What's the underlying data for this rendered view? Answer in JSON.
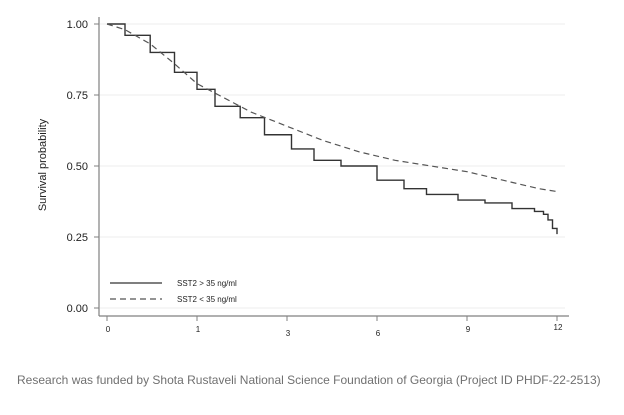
{
  "chart_data": {
    "type": "line",
    "title": "",
    "xlabel": "",
    "ylabel": "Survival probability",
    "x_tick_labels": [
      "0",
      "1",
      "3",
      "6",
      "9",
      "12"
    ],
    "y_ticks": [
      0.0,
      0.25,
      0.5,
      0.75,
      1.0
    ],
    "y_tick_labels": [
      "0.00",
      "0.25",
      "0.50",
      "0.75",
      "1.00"
    ],
    "ylim": [
      0,
      1
    ],
    "x_scale_note": "tick labels are evenly spaced; x values below are in tick-index units (0..5)",
    "xlim": [
      0,
      5
    ],
    "grid": true,
    "legend_position": "bottom-left",
    "series": [
      {
        "name": "SST2 > 35 ng/ml",
        "style": "solid",
        "color": "#333333",
        "x": [
          0,
          0.2,
          0.48,
          0.75,
          1.0,
          1.2,
          1.48,
          1.75,
          2.05,
          2.3,
          2.6,
          3.0,
          3.3,
          3.55,
          3.9,
          4.2,
          4.5,
          4.75,
          4.85,
          4.9,
          4.95,
          5.0
        ],
        "y": [
          1.0,
          0.96,
          0.9,
          0.83,
          0.77,
          0.71,
          0.67,
          0.61,
          0.56,
          0.52,
          0.5,
          0.45,
          0.42,
          0.4,
          0.38,
          0.37,
          0.35,
          0.34,
          0.33,
          0.31,
          0.28,
          0.26
        ]
      },
      {
        "name": "SST2 < 35 ng/ml",
        "style": "dashed",
        "color": "#555555",
        "x": [
          0,
          0.2,
          0.48,
          0.75,
          1.0,
          1.3,
          1.6,
          2.0,
          2.4,
          2.8,
          3.2,
          3.6,
          4.0,
          4.4,
          4.8,
          5.0
        ],
        "y": [
          1.0,
          0.98,
          0.93,
          0.86,
          0.79,
          0.74,
          0.69,
          0.64,
          0.59,
          0.55,
          0.52,
          0.5,
          0.48,
          0.45,
          0.42,
          0.41
        ]
      }
    ]
  },
  "caption": "Research was funded by Shota Rustaveli National Science Foundation of Georgia (Project ID PHDF-22-2513)"
}
